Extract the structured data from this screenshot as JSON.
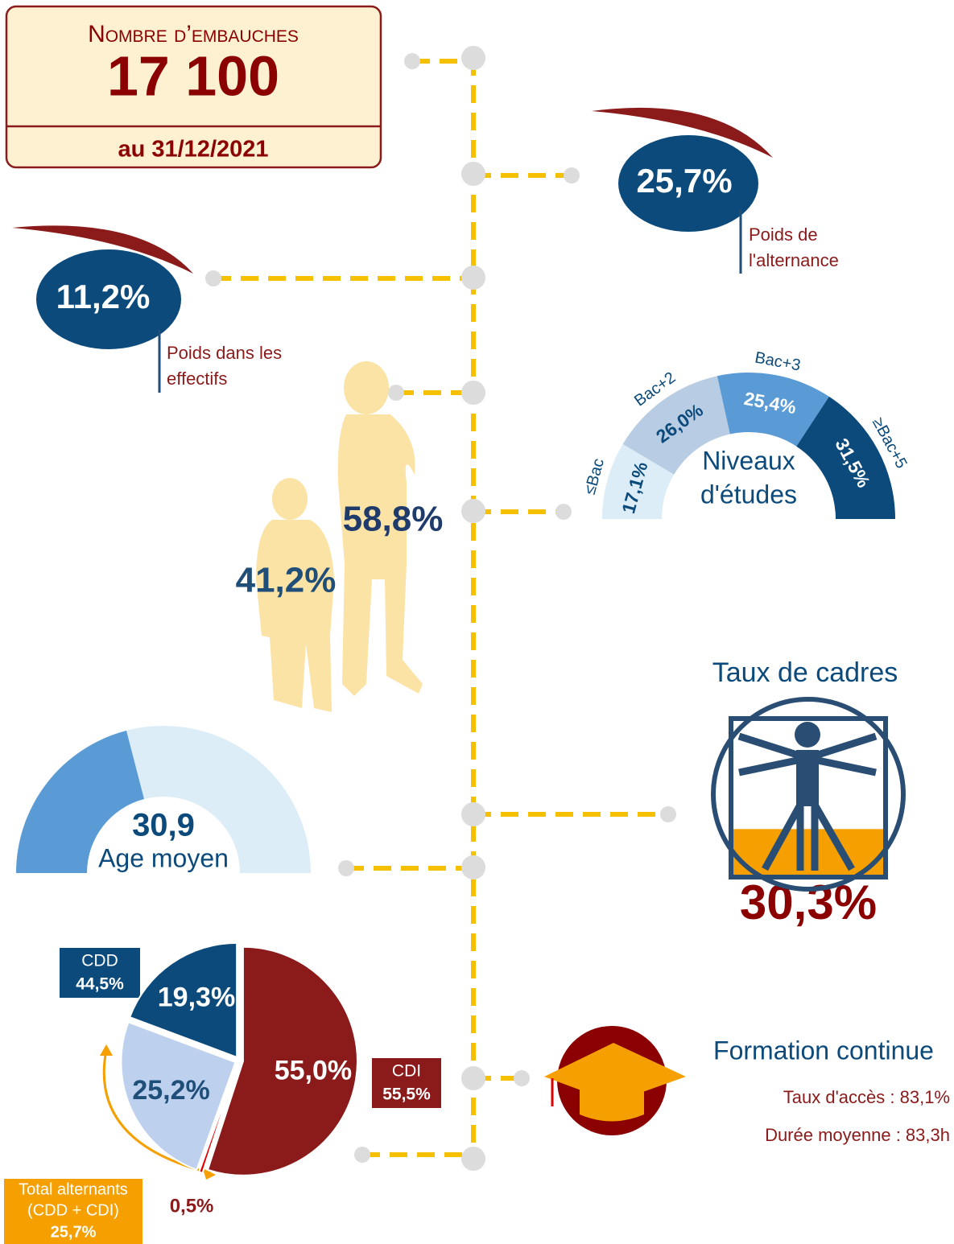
{
  "header": {
    "title": "Nombre d’embauches",
    "value": "17 100",
    "date": "au 31/12/2021"
  },
  "alternance": {
    "value": "25,7%",
    "label": [
      "Poids de",
      "l'alternance"
    ]
  },
  "effectifs": {
    "value": "11,2%",
    "label": [
      "Poids dans les",
      "effectifs"
    ]
  },
  "gender": {
    "women": "58,8%",
    "men": "41,2%"
  },
  "education": {
    "title": [
      "Niveaux",
      "d'études"
    ],
    "levels": [
      {
        "label": "≤Bac",
        "value": 17.1,
        "value_label": "17,1%",
        "color": "#dcedf8",
        "label_color": "#0b4a7a"
      },
      {
        "label": "Bac+2",
        "value": 26.0,
        "value_label": "26,0%",
        "color": "#b8cde3",
        "label_color": "#0b4a7a"
      },
      {
        "label": "Bac+3",
        "value": 25.4,
        "value_label": "25,4%",
        "color": "#5b9bd5",
        "label_color": "#ffffff"
      },
      {
        "label": "≥Bac+5",
        "value": 31.5,
        "value_label": "31,5%",
        "color": "#0b4a7a",
        "label_color": "#ffffff"
      }
    ]
  },
  "age": {
    "value": "30,9",
    "label": "Age moyen"
  },
  "cadres": {
    "title": "Taux de cadres",
    "value": 30.3,
    "value_label": "30,3%"
  },
  "contracts": {
    "slices": [
      {
        "value": 55.0,
        "value_label": "55,0%",
        "color": "#8b1a1a",
        "label_color": "#ffffff"
      },
      {
        "value": 0.5,
        "value_label": "0,5%",
        "color": "#e00000",
        "label_color": "#8b1a1a"
      },
      {
        "value": 25.2,
        "value_label": "25,2%",
        "color": "#bdd0ee",
        "label_color": "#1f4e79"
      },
      {
        "value": 19.3,
        "value_label": "19,3%",
        "color": "#0b4a7a",
        "label_color": "#ffffff"
      }
    ],
    "cdd": {
      "label": "CDD",
      "value": "44,5%"
    },
    "cdi": {
      "label": "CDI",
      "value": "55,5%"
    },
    "alternants": {
      "label": [
        "Total alternants",
        "(CDD + CDI)"
      ],
      "value": "25,7%"
    }
  },
  "formation": {
    "title": "Formation continue",
    "access": "Taux d'accès : 83,1%",
    "duration": "Durée moyenne : 83,3h"
  }
}
